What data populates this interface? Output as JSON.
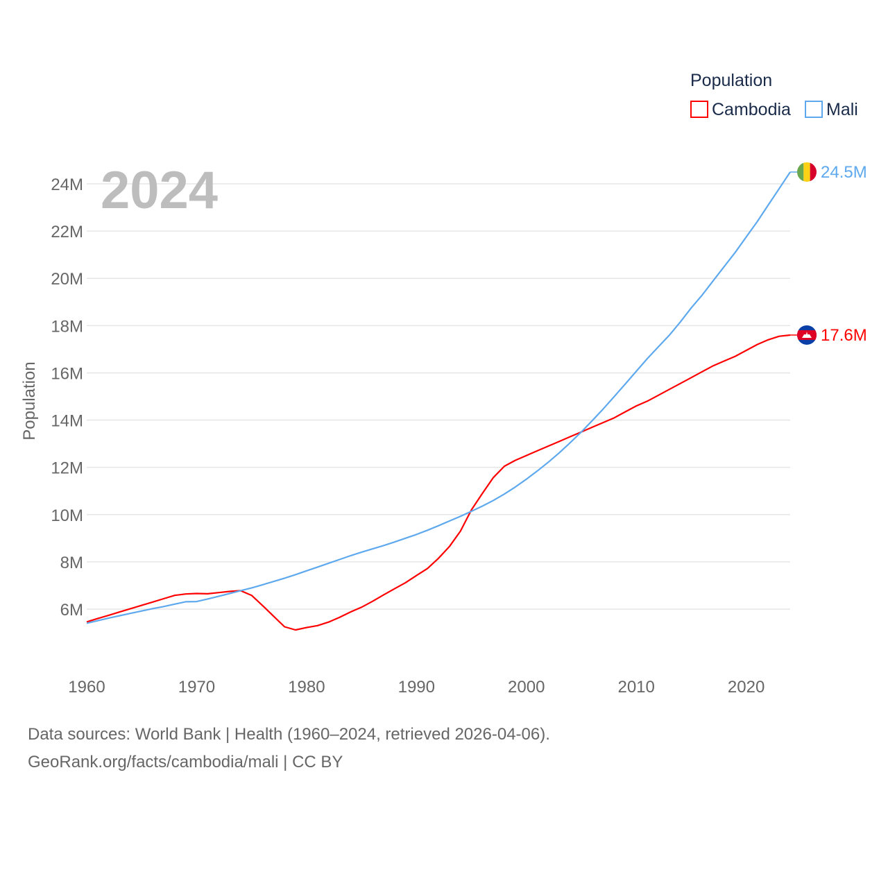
{
  "chart_data": {
    "type": "line",
    "title": "",
    "year_label": "2024",
    "xlabel": "",
    "ylabel": "Population",
    "xlim": [
      1960,
      2024
    ],
    "ylim": [
      6,
      24
    ],
    "grid": true,
    "x_ticks": [
      "1960",
      "1970",
      "1980",
      "1990",
      "2000",
      "2010",
      "2020"
    ],
    "y_ticks": [
      "6M",
      "8M",
      "10M",
      "12M",
      "14M",
      "16M",
      "18M",
      "20M",
      "22M",
      "24M"
    ],
    "legend": {
      "title": "Population",
      "position": "top-right",
      "entries": [
        "Cambodia",
        "Mali"
      ]
    },
    "x": [
      1960,
      1961,
      1962,
      1963,
      1964,
      1965,
      1966,
      1967,
      1968,
      1969,
      1970,
      1971,
      1972,
      1973,
      1974,
      1975,
      1976,
      1977,
      1978,
      1979,
      1980,
      1981,
      1982,
      1983,
      1984,
      1985,
      1986,
      1987,
      1988,
      1989,
      1990,
      1991,
      1992,
      1993,
      1994,
      1995,
      1996,
      1997,
      1998,
      1999,
      2000,
      2001,
      2002,
      2003,
      2004,
      2005,
      2006,
      2007,
      2008,
      2009,
      2010,
      2011,
      2012,
      2013,
      2014,
      2015,
      2016,
      2017,
      2018,
      2019,
      2020,
      2021,
      2022,
      2023,
      2024
    ],
    "series": [
      {
        "name": "Cambodia",
        "color": "#ff0000",
        "end_label": "17.6M",
        "flag": "cambodia-flag",
        "values": [
          5.46,
          5.6,
          5.74,
          5.88,
          6.02,
          6.16,
          6.3,
          6.44,
          6.58,
          6.64,
          6.66,
          6.65,
          6.7,
          6.75,
          6.78,
          6.58,
          6.15,
          5.7,
          5.25,
          5.12,
          5.22,
          5.3,
          5.45,
          5.65,
          5.88,
          6.08,
          6.33,
          6.6,
          6.86,
          7.12,
          7.42,
          7.72,
          8.15,
          8.65,
          9.3,
          10.2,
          10.9,
          11.57,
          12.05,
          12.3,
          12.5,
          12.7,
          12.9,
          13.1,
          13.3,
          13.5,
          13.7,
          13.9,
          14.1,
          14.35,
          14.6,
          14.8,
          15.05,
          15.3,
          15.55,
          15.8,
          16.05,
          16.3,
          16.5,
          16.7,
          16.95,
          17.2,
          17.4,
          17.55,
          17.6
        ]
      },
      {
        "name": "Mali",
        "color": "#5ea9ee",
        "end_label": "24.5M",
        "flag": "mali-flag",
        "values": [
          5.4,
          5.51,
          5.62,
          5.72,
          5.82,
          5.92,
          6.02,
          6.11,
          6.21,
          6.31,
          6.32,
          6.43,
          6.54,
          6.66,
          6.78,
          6.9,
          7.03,
          7.17,
          7.31,
          7.46,
          7.62,
          7.78,
          7.94,
          8.1,
          8.26,
          8.41,
          8.55,
          8.69,
          8.84,
          9.0,
          9.16,
          9.34,
          9.53,
          9.73,
          9.93,
          10.14,
          10.36,
          10.6,
          10.87,
          11.17,
          11.5,
          11.85,
          12.22,
          12.62,
          13.05,
          13.5,
          13.98,
          14.48,
          15.0,
          15.53,
          16.07,
          16.6,
          17.1,
          17.59,
          18.15,
          18.75,
          19.3,
          19.9,
          20.5,
          21.1,
          21.75,
          22.4,
          23.1,
          23.8,
          24.5
        ]
      }
    ]
  },
  "footer": {
    "line1": "Data sources: World Bank | Health (1960–2024, retrieved 2026-04-06).",
    "line2": "GeoRank.org/facts/cambodia/mali | CC BY"
  }
}
